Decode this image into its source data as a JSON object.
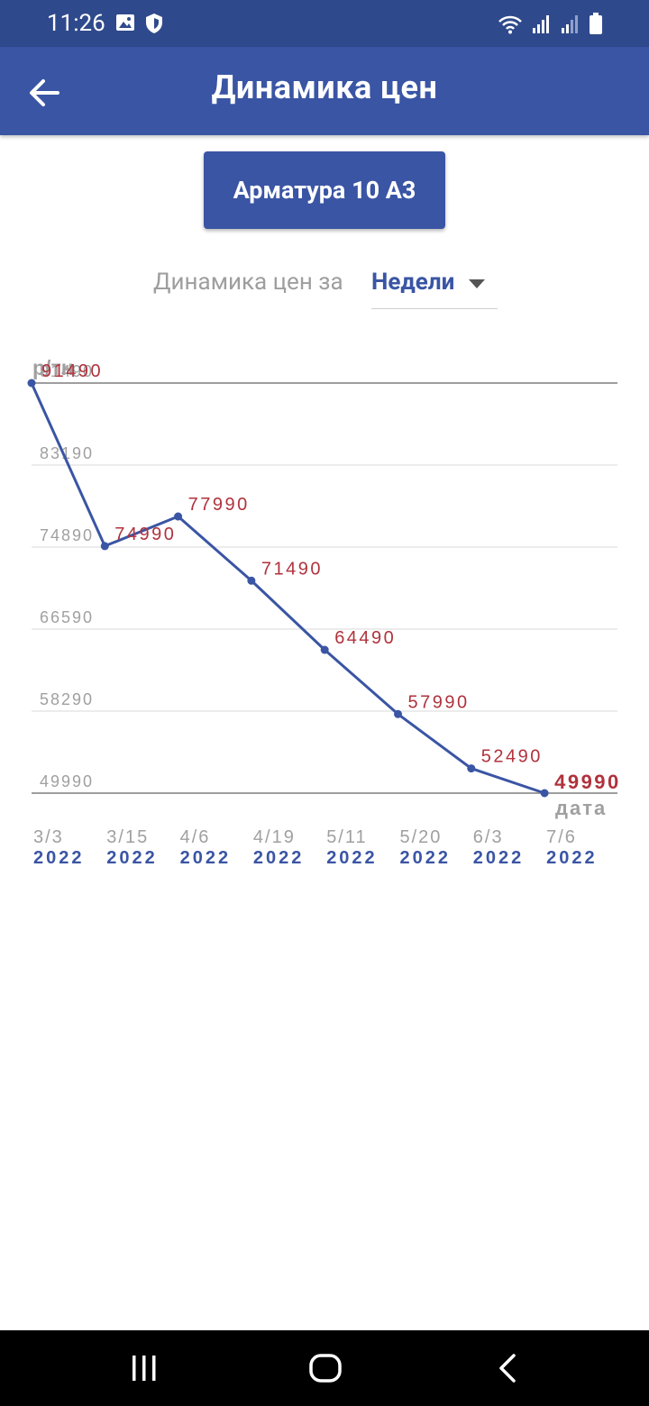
{
  "status_bar": {
    "time": "11:26"
  },
  "app_bar": {
    "title": "Динамика цен"
  },
  "product": {
    "label": "Арматура 10 А3"
  },
  "period": {
    "label": "Динамика цен за",
    "selected": "Недели"
  },
  "chart_data": {
    "type": "line",
    "ylabel": "р/тн",
    "xlabel": "дата",
    "y_ticks": [
      91490,
      83190,
      74890,
      66590,
      58290,
      49990
    ],
    "ylim": [
      49990,
      91490
    ],
    "categories": [
      {
        "md": "3/3",
        "year": "2022"
      },
      {
        "md": "3/15",
        "year": "2022"
      },
      {
        "md": "4/6",
        "year": "2022"
      },
      {
        "md": "4/19",
        "year": "2022"
      },
      {
        "md": "5/11",
        "year": "2022"
      },
      {
        "md": "5/20",
        "year": "2022"
      },
      {
        "md": "6/3",
        "year": "2022"
      },
      {
        "md": "7/6",
        "year": "2022"
      }
    ],
    "values": [
      91490,
      74990,
      77990,
      71490,
      64490,
      57990,
      52490,
      49990
    ],
    "line_color": "#3a55a4",
    "label_color": "#b0323c",
    "grid": true
  }
}
